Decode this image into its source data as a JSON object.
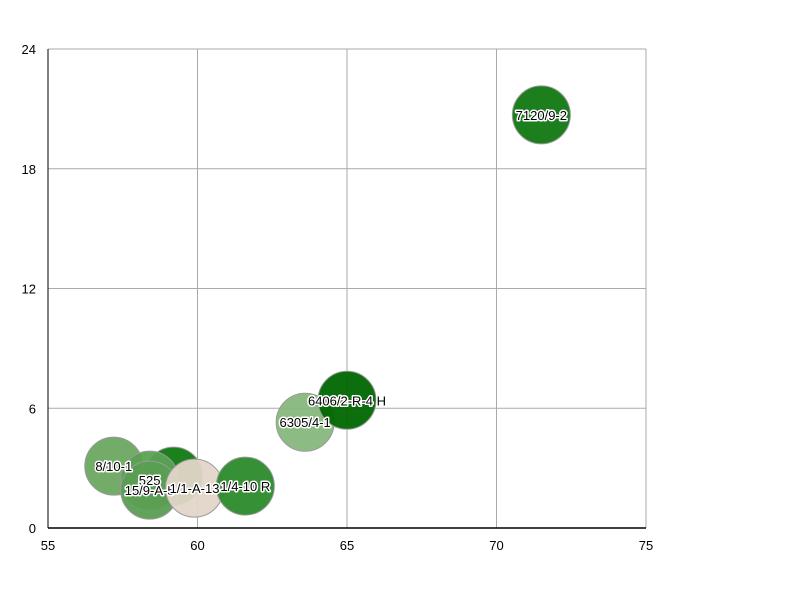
{
  "chart_data": {
    "type": "scatter",
    "title": "",
    "xlabel": "",
    "ylabel": "",
    "xlim": [
      55,
      75
    ],
    "ylim": [
      0,
      24
    ],
    "x_ticks": [
      55,
      60,
      65,
      70,
      75
    ],
    "y_ticks": [
      0,
      6,
      12,
      18,
      24
    ],
    "grid": true,
    "legend": "none",
    "points": [
      {
        "label": "8/10-1",
        "x": 57.2,
        "y": 3.1,
        "color": "#6aa860"
      },
      {
        "label": "",
        "x": 59.2,
        "y": 2.6,
        "color": "#107a10"
      },
      {
        "label": "525",
        "x": 58.4,
        "y": 2.4,
        "color": "#5aa252"
      },
      {
        "label": "15/9-A-5",
        "x": 58.4,
        "y": 1.9,
        "color": "#5a9e52"
      },
      {
        "label": "1/1-A-13",
        "x": 59.9,
        "y": 2.0,
        "color": "#e2d6c8"
      },
      {
        "label": "1/4-10 R",
        "x": 61.6,
        "y": 2.1,
        "color": "#2b8a2b"
      },
      {
        "label": "6305/4-1",
        "x": 63.6,
        "y": 5.3,
        "color": "#86b87c"
      },
      {
        "label": "6406/2-R-4 H",
        "x": 65.0,
        "y": 6.4,
        "color": "#006600"
      },
      {
        "label": "7120/9-2",
        "x": 71.5,
        "y": 20.7,
        "color": "#117711"
      }
    ],
    "colors": {
      "grid": "#aaaaaa",
      "axis": "#000000",
      "label_text": "#000000",
      "label_halo": "#ffffff"
    }
  }
}
